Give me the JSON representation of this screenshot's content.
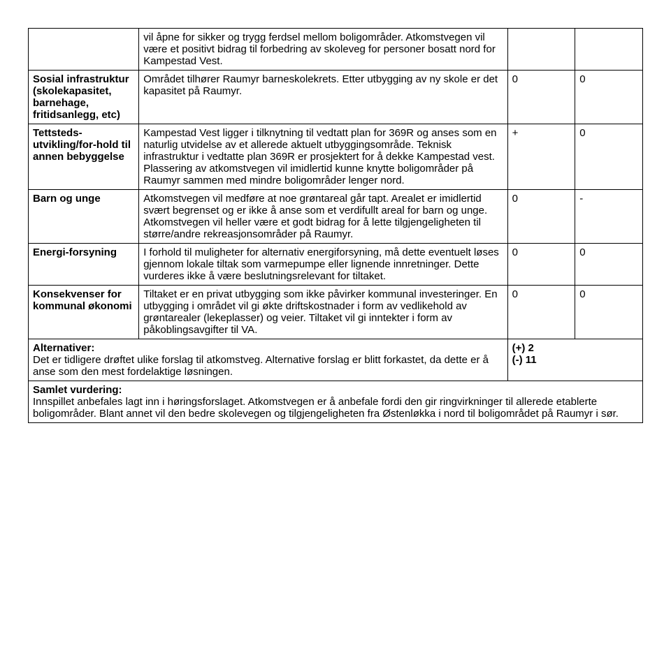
{
  "rows": [
    {
      "label": "",
      "desc": "vil åpne for sikker og trygg ferdsel mellom boligområder. Atkomstvegen vil være et positivt bidrag til forbedring av skoleveg for personer bosatt nord for Kampestad Vest.",
      "c1": "",
      "c2": ""
    },
    {
      "label": "Sosial infrastruktur (skolekapasitet, barnehage, fritidsanlegg, etc)",
      "desc": "Området tilhører Raumyr barneskolekrets. Etter utbygging av ny skole er det kapasitet på Raumyr.",
      "c1": "0",
      "c2": "0"
    },
    {
      "label": "Tettsteds-utvikling/for-hold til annen bebyggelse",
      "desc": "Kampestad Vest ligger i tilknytning til vedtatt plan for 369R og anses som en naturlig utvidelse av et allerede aktuelt utbyggingsområde. Teknisk infrastruktur i vedtatte plan 369R er prosjektert for å dekke Kampestad vest. Plassering av atkomstvegen vil imidlertid kunne knytte boligområder på Raumyr sammen med mindre boligområder lenger nord.",
      "c1": "+",
      "c2": "0"
    },
    {
      "label": "Barn og unge",
      "desc": "Atkomstvegen vil medføre at noe grøntareal går tapt. Arealet er imidlertid svært begrenset og er ikke å anse som et verdifullt areal for barn og unge. Atkomstvegen vil heller være et godt bidrag for å lette tilgjengeligheten til større/andre rekreasjonsområder på Raumyr.",
      "c1": "0",
      "c2": "-"
    },
    {
      "label": "Energi-forsyning",
      "desc": "I forhold til muligheter for alternativ energiforsyning, må dette eventuelt løses gjennom lokale tiltak som varmepumpe eller lignende innretninger. Dette vurderes ikke å være beslutningsrelevant for tiltaket.",
      "c1": "0",
      "c2": "0"
    },
    {
      "label": "Konsekvenser for kommunal økonomi",
      "desc": "Tiltaket er en privat utbygging som ikke påvirker kommunal investeringer. En utbygging i området vil gi økte driftskostnader i form av vedlikehold av grøntarealer (lekeplasser) og veier. Tiltaket vil gi inntekter i form av påkoblingsavgifter til VA.",
      "c1": "0",
      "c2": "0"
    }
  ],
  "alt": {
    "heading": "Alternativer:",
    "text": "Det er tidligere drøftet ulike forslag til atkomstveg. Alternative forslag er blitt forkastet, da dette er å anse som den mest fordelaktige løsningen.",
    "score1": "(+) 2",
    "score2": "(-)  11"
  },
  "samlet": {
    "heading": "Samlet vurdering:",
    "text": "Innspillet anbefales lagt inn i høringsforslaget. Atkomstvegen er å anbefale fordi den gir ringvirkninger til allerede etablerte boligområder. Blant annet vil den bedre skolevegen og tilgjengeligheten fra Østenløkka i nord til boligområdet på Raumyr i sør."
  }
}
